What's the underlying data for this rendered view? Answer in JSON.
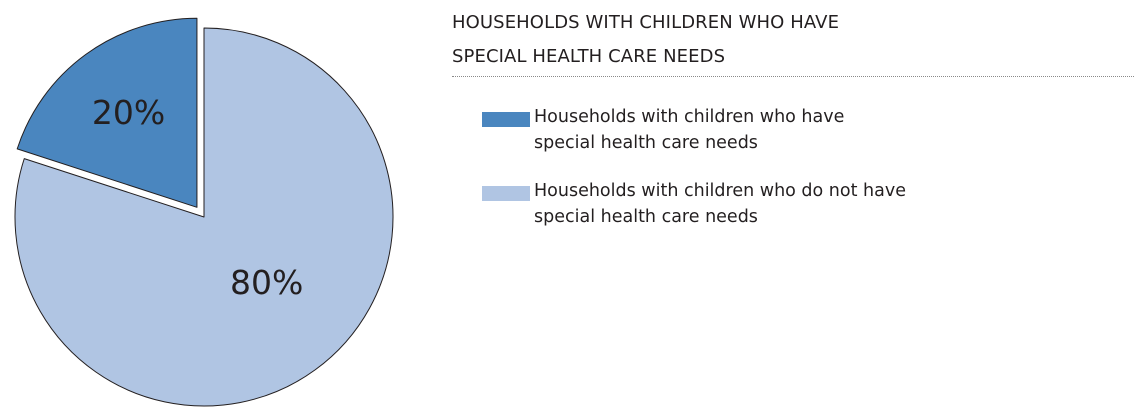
{
  "chart_data": {
    "type": "pie",
    "title_lines": [
      "HOUSEHOLDS WITH CHILDREN WHO HAVE",
      "SPECIAL HEALTH CARE NEEDS"
    ],
    "exploded_slice": 0,
    "slices": [
      {
        "name": "Households with children who have special health care needs",
        "legend_lines": [
          "Households with children who have",
          "special health care needs"
        ],
        "value": 20,
        "label": "20%",
        "color": "#4a86bf"
      },
      {
        "name": "Households with children who do not have special health care needs",
        "legend_lines": [
          "Households with children who do not have",
          "special health care needs"
        ],
        "value": 80,
        "label": "80%",
        "color": "#b0c5e3"
      }
    ]
  }
}
